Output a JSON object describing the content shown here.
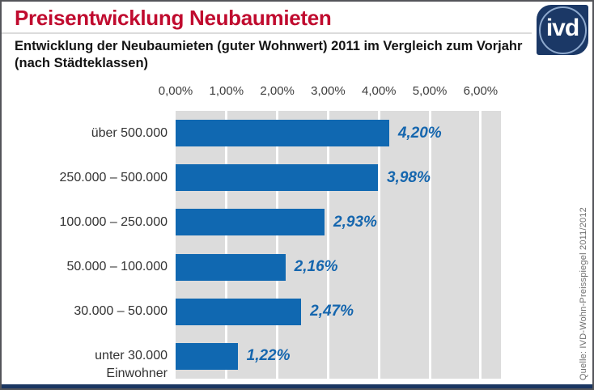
{
  "header": {
    "title": "Preisentwicklung Neubaumieten",
    "subtitle": "Entwicklung der Neubaumieten (guter Wohnwert) 2011 im Vergleich zum Vorjahr (nach Städteklassen)",
    "logo_text": "ivd"
  },
  "chart_data": {
    "type": "bar",
    "orientation": "horizontal",
    "title": "Entwicklung der Neubaumieten (guter Wohnwert) 2011 im Vergleich zum Vorjahr (nach Städteklassen)",
    "categories": [
      "über 500.000",
      "250.000 – 500.000",
      "100.000 – 250.000",
      "50.000 – 100.000",
      "30.000 – 50.000",
      "unter 30.000\nEinwohner"
    ],
    "values": [
      4.2,
      3.98,
      2.93,
      2.16,
      2.47,
      1.22
    ],
    "value_labels": [
      "4,20%",
      "3,98%",
      "2,93%",
      "2,16%",
      "2,47%",
      "1,22%"
    ],
    "x_ticks": [
      "0,00%",
      "1,00%",
      "2,00%",
      "3,00%",
      "4,00%",
      "5,00%",
      "6,00%"
    ],
    "x_tick_values": [
      0,
      1,
      2,
      3,
      4,
      5,
      6
    ],
    "xlim": [
      0,
      6.4
    ],
    "grid": true,
    "legend": "none",
    "colors": {
      "bar": "#1068b1",
      "value_label": "#1566ae",
      "plot_background": "#dcdcdc",
      "gridline": "#ffffff",
      "title": "#c00b2f",
      "accent_navy": "#1a3662"
    }
  },
  "source": "Quelle: IVD-Wohn-Preisspiegel 2011/2012"
}
